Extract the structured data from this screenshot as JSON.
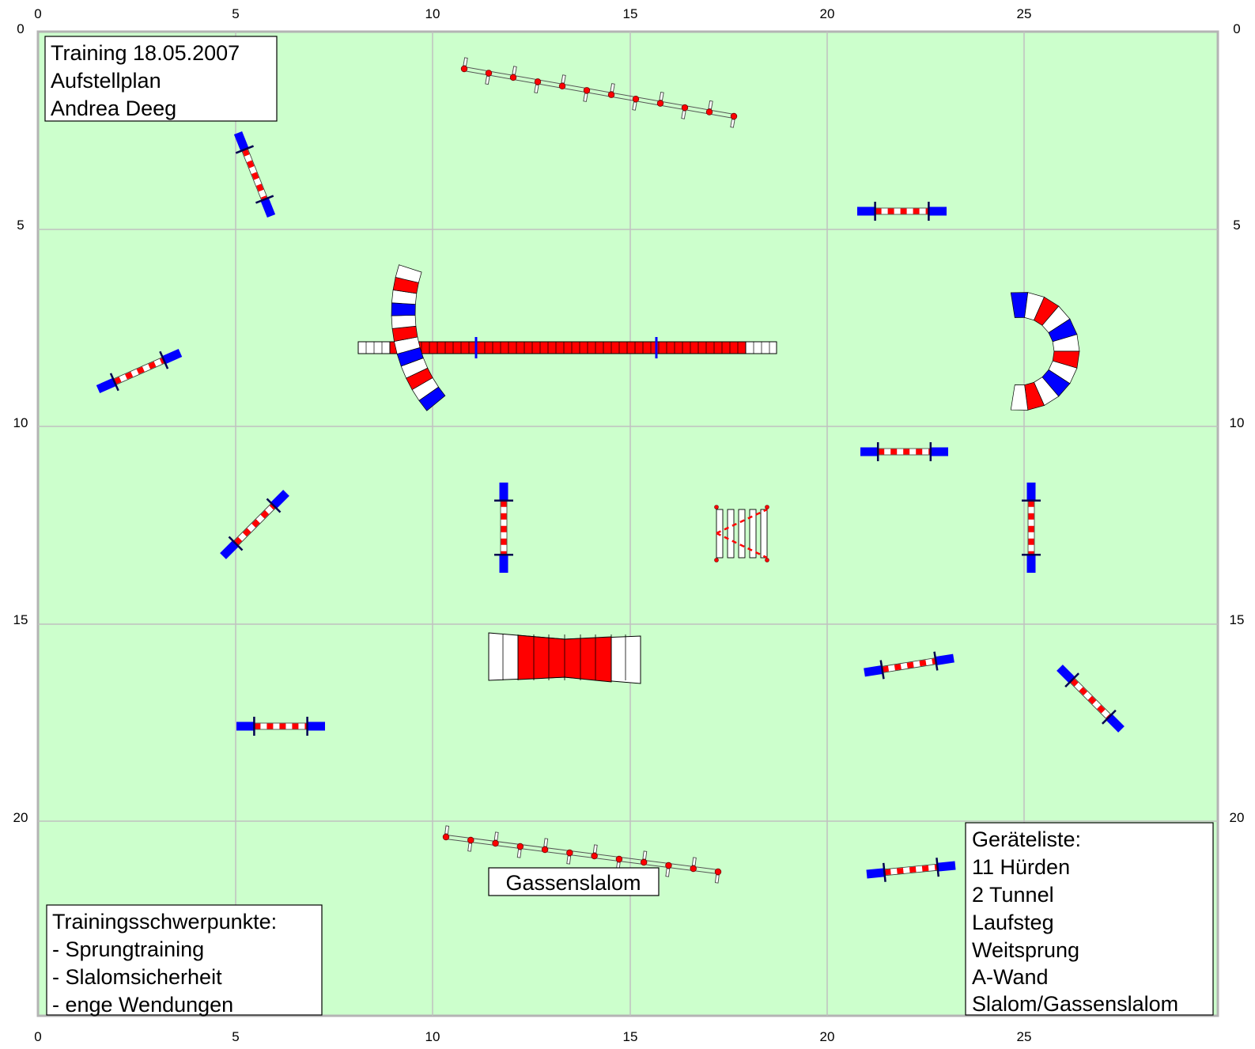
{
  "ruler": {
    "x_ticks": [
      "0",
      "5",
      "10",
      "15",
      "20",
      "25"
    ],
    "y_ticks": [
      "0",
      "5",
      "10",
      "15",
      "20"
    ]
  },
  "colors": {
    "field": "#ccffcc",
    "grid": "#c0c0c0",
    "border": "#b4b4b4",
    "red": "#ff0000",
    "blue": "#0000ff",
    "dark_red": "#c00000"
  },
  "header": {
    "line1": "Training 18.05.2007",
    "line2": "Aufstellplan",
    "line3": "Andrea Deeg"
  },
  "focus": {
    "title": "Trainingsschwerpunkte:",
    "items": [
      "- Sprungtraining",
      "- Slalomsicherheit",
      "- enge Wendungen"
    ]
  },
  "equipment": {
    "title": "Geräteliste:",
    "items": [
      "11 Hürden",
      "2 Tunnel",
      "Laufsteg",
      "Weitsprung",
      "A-Wand",
      "Slalom/Gassenslalom"
    ]
  },
  "gassenslalom_label": "Gassenslalom",
  "legend_icons": [
    "hurdle-icon",
    "tunnel-icon",
    "dogwalk-icon",
    "long-jump-icon",
    "a-frame-icon",
    "slalom-icon"
  ]
}
